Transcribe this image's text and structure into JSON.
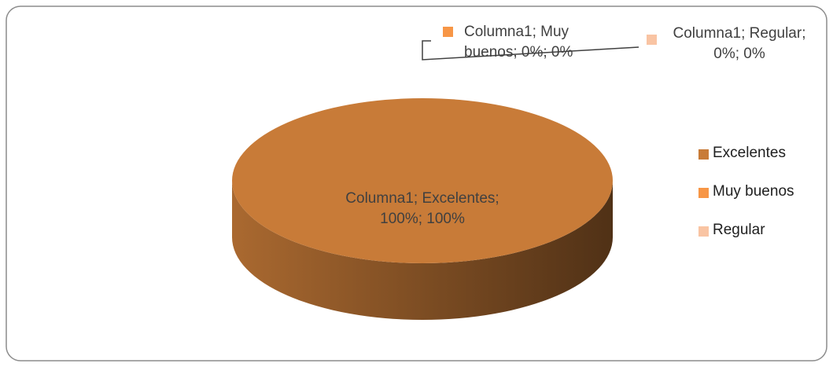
{
  "chart_data": {
    "type": "pie",
    "categories": [
      "Excelentes",
      "Muy buenos",
      "Regular"
    ],
    "values": [
      100,
      0,
      0
    ],
    "value_labels": [
      "Columna1; Excelentes; 100%; 100%",
      "Columna1; Muy buenos; 0%; 0%",
      "Columna1; Regular; 0%; 0%"
    ],
    "colors": [
      "#c87b38",
      "#f79646",
      "#f9c4a3"
    ],
    "legend": "right"
  }
}
